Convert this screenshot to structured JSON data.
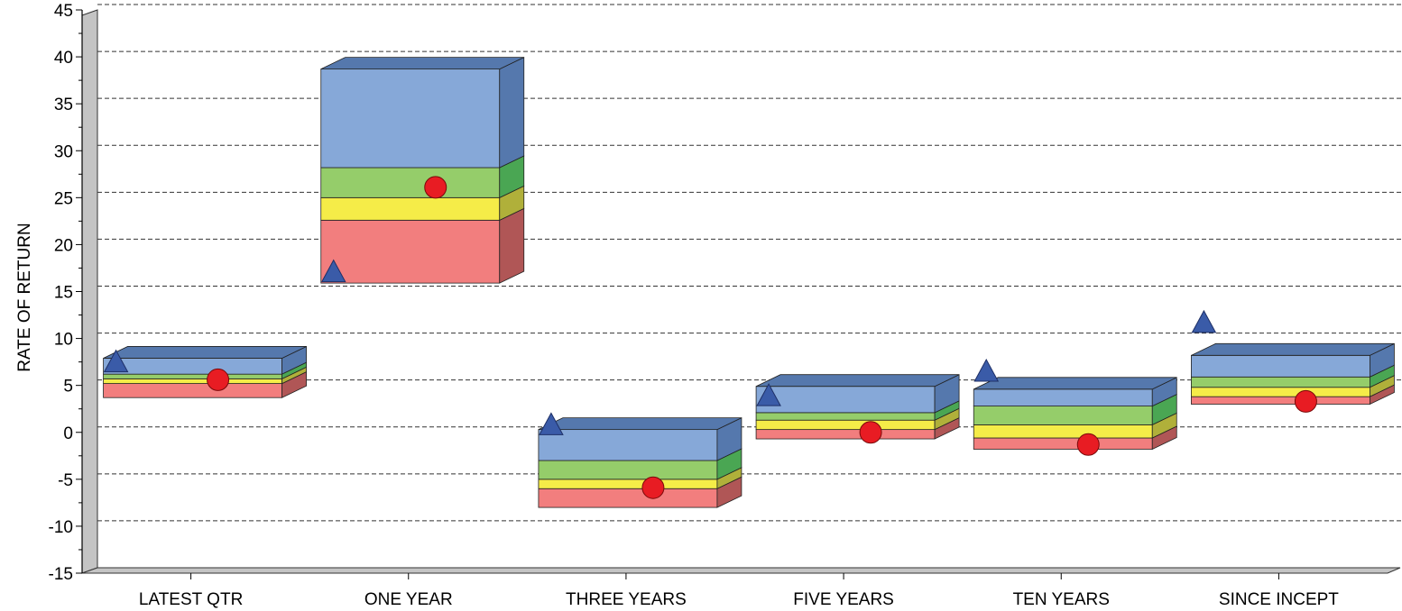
{
  "chart_data": {
    "type": "floating-bar",
    "title": "",
    "xlabel": "",
    "ylabel": "RATE OF RETURN",
    "ylim": [
      -15,
      45
    ],
    "ytick_step": 5,
    "grid": "dashed-horizontal",
    "categories": [
      "LATEST QTR",
      "ONE YEAR",
      "THREE YEARS",
      "FIVE YEARS",
      "TEN YEARS",
      "SINCE INCEPT"
    ],
    "bands": [
      {
        "color": "#f27e7e",
        "side_color": "#b05656",
        "bounds": [
          [
            3.7,
            5.2
          ],
          [
            15.9,
            22.6
          ],
          [
            -8.0,
            -6.0
          ],
          [
            -0.7,
            0.3
          ],
          [
            -1.8,
            -0.6
          ],
          [
            3.0,
            3.8
          ]
        ]
      },
      {
        "color": "#f5ec48",
        "side_color": "#b0b03a",
        "bounds": [
          [
            5.2,
            5.7
          ],
          [
            22.6,
            25.0
          ],
          [
            -6.0,
            -5.0
          ],
          [
            0.3,
            1.3
          ],
          [
            -0.6,
            0.8
          ],
          [
            3.8,
            4.8
          ]
        ]
      },
      {
        "color": "#95cd6a",
        "side_color": "#4aa653",
        "bounds": [
          [
            5.7,
            6.2
          ],
          [
            25.0,
            28.2
          ],
          [
            -5.0,
            -3.0
          ],
          [
            1.3,
            2.1
          ],
          [
            0.8,
            2.8
          ],
          [
            4.8,
            5.9
          ]
        ]
      },
      {
        "color": "#86a8d8",
        "side_color": "#5578ad",
        "bounds": [
          [
            6.2,
            7.9
          ],
          [
            28.2,
            38.7
          ],
          [
            -3.0,
            0.3
          ],
          [
            2.1,
            4.9
          ],
          [
            2.8,
            4.6
          ],
          [
            5.9,
            8.2
          ]
        ]
      }
    ],
    "circle_markers": [
      5.6,
      26.1,
      -5.9,
      0.0,
      -1.3,
      3.3
    ],
    "triangle_markers": [
      7.5,
      17.1,
      0.8,
      3.9,
      6.5,
      11.7
    ],
    "circle_color": "#e81c23",
    "triangle_color": "#3a5ba8"
  }
}
